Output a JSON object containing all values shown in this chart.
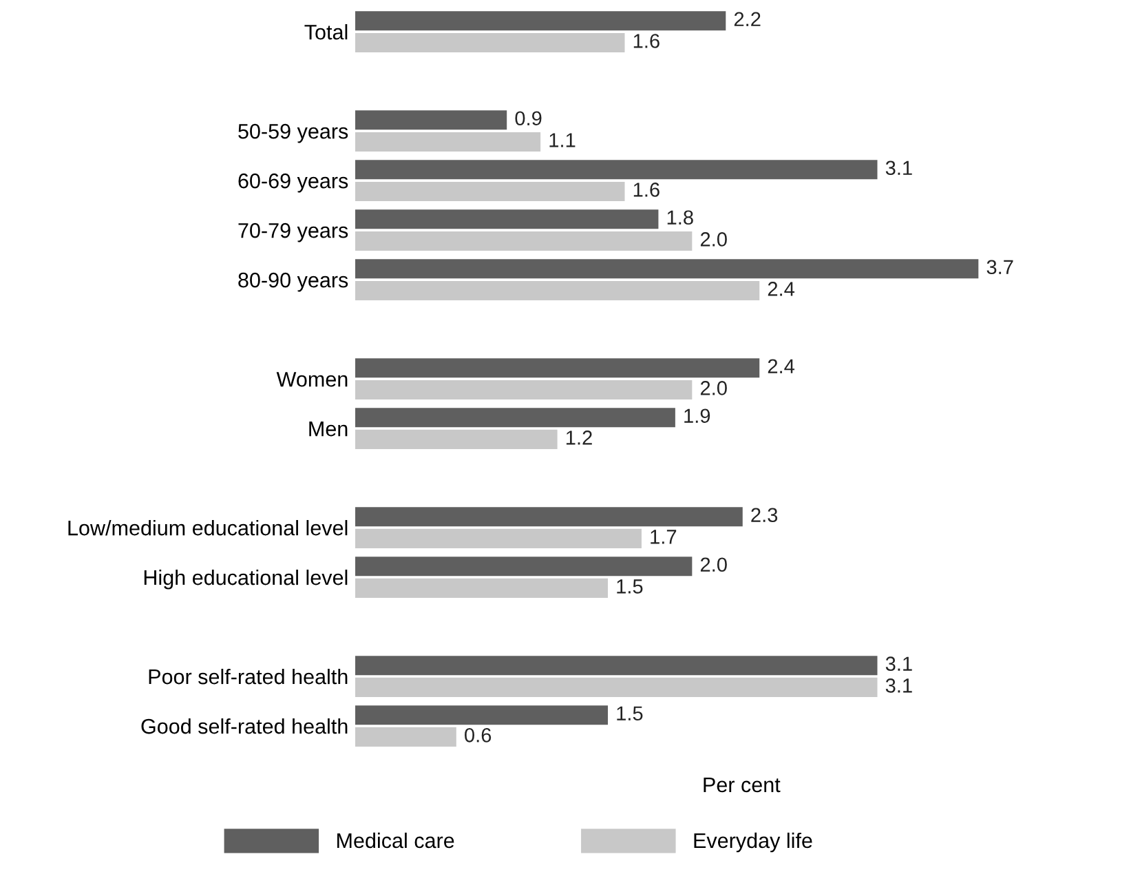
{
  "chart_data": {
    "type": "bar",
    "orientation": "horizontal",
    "xlabel": "Per cent",
    "categories": [
      "Total",
      null,
      "50-59 years",
      "60-69 years",
      "70-79 years",
      "80-90 years",
      null,
      "Women",
      "Men",
      null,
      "Low/medium educational level",
      "High educational level",
      null,
      "Poor self-rated health",
      "Good self-rated health"
    ],
    "series": [
      {
        "name": "Medical care",
        "color": "#5f5f5f",
        "values": [
          2.2,
          null,
          0.9,
          3.1,
          1.8,
          3.7,
          null,
          2.4,
          1.9,
          null,
          2.3,
          2.0,
          null,
          3.1,
          1.5
        ],
        "value_labels": [
          "2.2",
          null,
          "0.9",
          "3.1",
          "1.8",
          "3.7",
          null,
          "2.4",
          "1.9",
          null,
          "2.3",
          "2.0",
          null,
          "3.1",
          "1.5"
        ]
      },
      {
        "name": "Everyday life",
        "color": "#c8c8c8",
        "values": [
          1.6,
          null,
          1.1,
          1.6,
          2.0,
          2.4,
          null,
          2.0,
          1.2,
          null,
          1.7,
          1.5,
          null,
          3.1,
          0.6
        ],
        "value_labels": [
          "1.6",
          null,
          "1.1",
          "1.6",
          "2.0",
          "2.4",
          null,
          "2.0",
          "1.2",
          null,
          "1.7",
          "1.5",
          null,
          "3.1",
          "0.6"
        ]
      }
    ],
    "legend": "bottom",
    "tick_labels": "y",
    "grid": false
  }
}
